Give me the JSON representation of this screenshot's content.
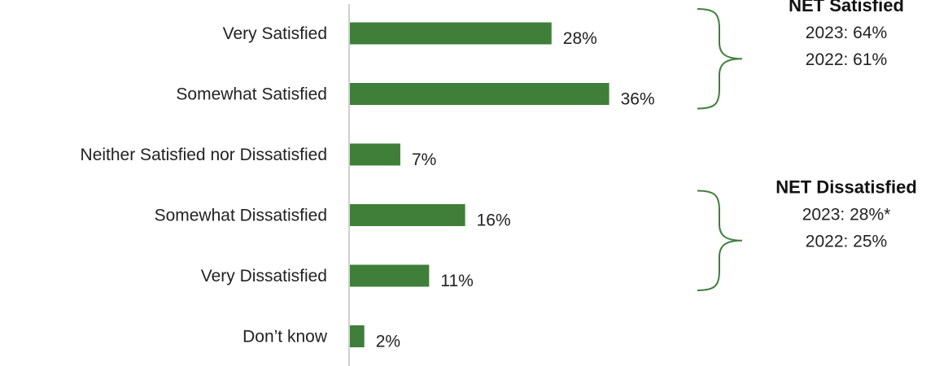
{
  "chart_data": {
    "type": "bar",
    "orientation": "horizontal",
    "categories": [
      "Very Satisfied",
      "Somewhat Satisfied",
      "Neither Satisfied nor Dissatisfied",
      "Somewhat Dissatisfied",
      "Very Dissatisfied",
      "Don’t know"
    ],
    "values": [
      28,
      36,
      7,
      16,
      11,
      2
    ],
    "value_labels": [
      "28%",
      "36%",
      "7%",
      "16%",
      "11%",
      "2%"
    ],
    "unit": "%",
    "xlim": [
      0,
      38
    ],
    "grid": false,
    "legend": "none",
    "bar_color": "#3f7f3a",
    "axis_color": "#bfbfbf",
    "annotations": [
      {
        "title": "NET Satisfied",
        "lines": [
          "2023: 64%",
          "2022: 61%"
        ],
        "brackets": [
          "Very Satisfied",
          "Somewhat Satisfied"
        ]
      },
      {
        "title": "NET Dissatisfied",
        "lines": [
          "2023: 28%*",
          "2022: 25%"
        ],
        "brackets": [
          "Somewhat Dissatisfied",
          "Very Dissatisfied"
        ]
      }
    ],
    "bracket_color": "#3f7f3a"
  }
}
